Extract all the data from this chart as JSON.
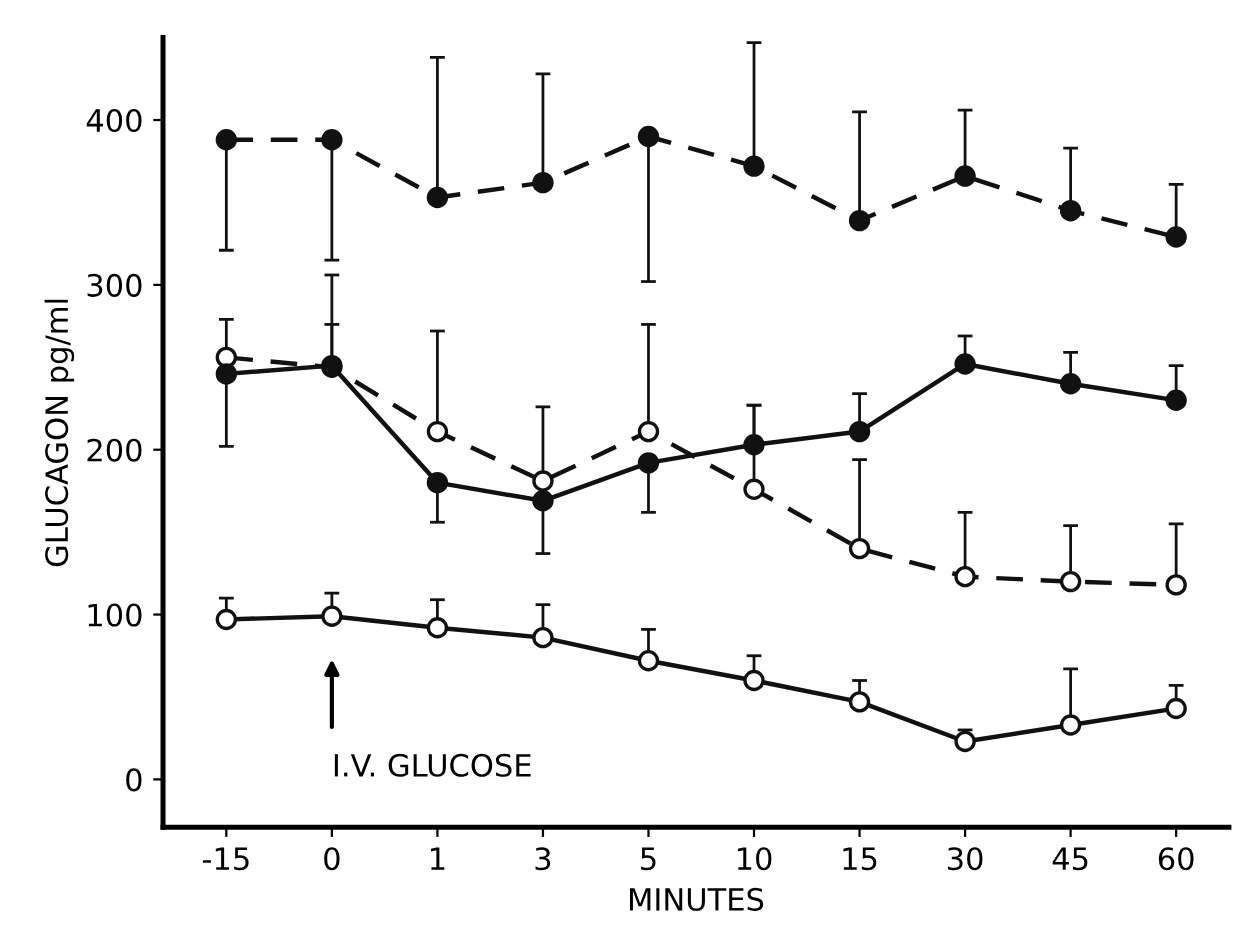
{
  "chart_data": {
    "type": "line",
    "ylabel": "GLUCAGON pg/ml",
    "xlabel": "MINUTES",
    "categories": [
      "-15",
      "0",
      "1",
      "3",
      "5",
      "10",
      "15",
      "30",
      "45",
      "60"
    ],
    "ylim": [
      -29,
      450
    ],
    "yticks": [
      0,
      100,
      200,
      300,
      400
    ],
    "grid": false,
    "legend": false,
    "series": [
      {
        "color": "#111111",
        "marker": "circle",
        "line_style": "dashed",
        "values": [
          388,
          388,
          353,
          362,
          390,
          372,
          339,
          366,
          345,
          329
        ],
        "errors": [
          [
            321,
            388
          ],
          [
            315,
            388
          ],
          [
            353,
            438
          ],
          [
            362,
            428
          ],
          [
            302,
            390
          ],
          [
            372,
            447
          ],
          [
            339,
            405
          ],
          [
            366,
            406
          ],
          [
            345,
            383
          ],
          [
            329,
            361
          ]
        ]
      },
      {
        "color": "#111111",
        "marker": "circle",
        "line_style": "dashed",
        "values": [
          256,
          250,
          211,
          181,
          211,
          176,
          140,
          123,
          120,
          118
        ],
        "errors": [
          [
            256,
            279
          ],
          [
            250,
            276
          ],
          [
            211,
            272
          ],
          [
            181,
            226
          ],
          [
            211,
            276
          ],
          [
            176,
            227
          ],
          [
            140,
            194
          ],
          [
            123,
            162
          ],
          [
            120,
            154
          ],
          [
            118,
            155
          ]
        ]
      },
      {
        "color": "#111111",
        "marker": "circle",
        "line_style": "solid",
        "values": [
          246,
          251,
          180,
          169,
          192,
          203,
          211,
          252,
          240,
          230
        ],
        "errors": [
          [
            202,
            246
          ],
          [
            251,
            306
          ],
          [
            156,
            180
          ],
          [
            137,
            169
          ],
          [
            162,
            192
          ],
          [
            203,
            227
          ],
          [
            211,
            234
          ],
          [
            252,
            269
          ],
          [
            240,
            259
          ],
          [
            230,
            251
          ]
        ]
      },
      {
        "color": "#111111",
        "marker": "circle",
        "line_style": "solid",
        "values": [
          97,
          99,
          92,
          86,
          72,
          60,
          47,
          23,
          33,
          43
        ],
        "errors": [
          [
            97,
            110
          ],
          [
            99,
            113
          ],
          [
            92,
            109
          ],
          [
            86,
            106
          ],
          [
            72,
            91
          ],
          [
            60,
            75
          ],
          [
            47,
            60
          ],
          [
            23,
            30
          ],
          [
            33,
            67
          ],
          [
            43,
            57
          ]
        ]
      }
    ],
    "annotations": [
      "I.V. GLUCOSE"
    ]
  }
}
